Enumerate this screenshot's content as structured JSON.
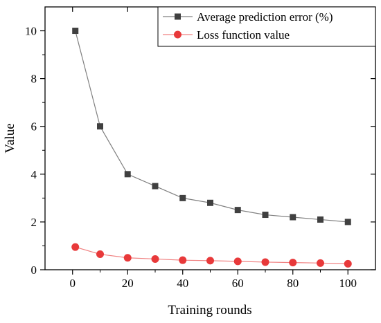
{
  "chart_data": {
    "type": "line",
    "xlabel": "Training rounds",
    "ylabel": "Value",
    "xlim": [
      -10,
      110
    ],
    "ylim": [
      0,
      11
    ],
    "x_ticks": [
      0,
      20,
      40,
      60,
      80,
      100
    ],
    "y_ticks": [
      0,
      2,
      4,
      6,
      8,
      10
    ],
    "x_tick_labels": [
      "0",
      "20",
      "40",
      "60",
      "80",
      "100"
    ],
    "y_tick_labels": [
      "0",
      "2",
      "4",
      "6",
      "8",
      "10"
    ],
    "grid": false,
    "legend_position": "top-right",
    "x": [
      1,
      10,
      20,
      30,
      40,
      50,
      60,
      70,
      80,
      90,
      100
    ],
    "series": [
      {
        "name": "Average prediction error (%)",
        "marker": "square",
        "color": "#404040",
        "line_color": "#808080",
        "values": [
          10.0,
          6.0,
          4.0,
          3.5,
          3.0,
          2.8,
          2.5,
          2.3,
          2.2,
          2.1,
          2.0
        ]
      },
      {
        "name": "Loss function value",
        "marker": "circle",
        "color": "#e8393a",
        "line_color": "#f08080",
        "values": [
          0.95,
          0.65,
          0.5,
          0.45,
          0.4,
          0.38,
          0.35,
          0.32,
          0.3,
          0.28,
          0.25
        ]
      }
    ]
  }
}
